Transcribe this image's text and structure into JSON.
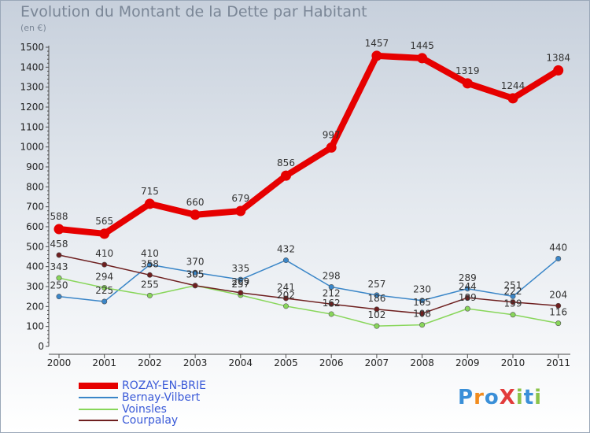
{
  "title": "Evolution du Montant de la Dette par Habitant",
  "subtitle": "(en €)",
  "logo": {
    "text": "ProXiti",
    "colors": [
      "#3a8fd8",
      "#f28c1e",
      "#3a8fd8",
      "#e23b3b",
      "#8bc34a",
      "#3a8fd8",
      "#8bc34a"
    ]
  },
  "chart_data": {
    "type": "line",
    "title": "Evolution du Montant de la Dette par Habitant",
    "ylabel": "(en €)",
    "xlabel": "",
    "x": [
      "2000",
      "2001",
      "2002",
      "2003",
      "2004",
      "2005",
      "2006",
      "2007",
      "2008",
      "2009",
      "2010",
      "2011"
    ],
    "ylim": [
      0,
      1500
    ],
    "yticks": [
      0,
      100,
      200,
      300,
      400,
      500,
      600,
      700,
      800,
      900,
      1000,
      1100,
      1200,
      1300,
      1400,
      1500
    ],
    "grid": false,
    "legend": "bottom-left",
    "series": [
      {
        "name": "ROZAY-EN-BRIE",
        "color": "#e60000",
        "values": [
          588,
          565,
          715,
          660,
          679,
          856,
          997,
          1457,
          1445,
          1319,
          1244,
          1384
        ]
      },
      {
        "name": "Bernay-Vilbert",
        "color": "#3a86c8",
        "values": [
          250,
          225,
          410,
          370,
          335,
          432,
          298,
          257,
          230,
          289,
          251,
          440
        ]
      },
      {
        "name": "Voinsles",
        "color": "#88d65a",
        "values": [
          343,
          294,
          255,
          305,
          257,
          202,
          162,
          102,
          108,
          189,
          159,
          116
        ]
      },
      {
        "name": "Courpalay",
        "color": "#6e1f1f",
        "values": [
          458,
          410,
          358,
          305,
          269,
          241,
          212,
          186,
          165,
          244,
          222,
          204
        ]
      }
    ]
  }
}
